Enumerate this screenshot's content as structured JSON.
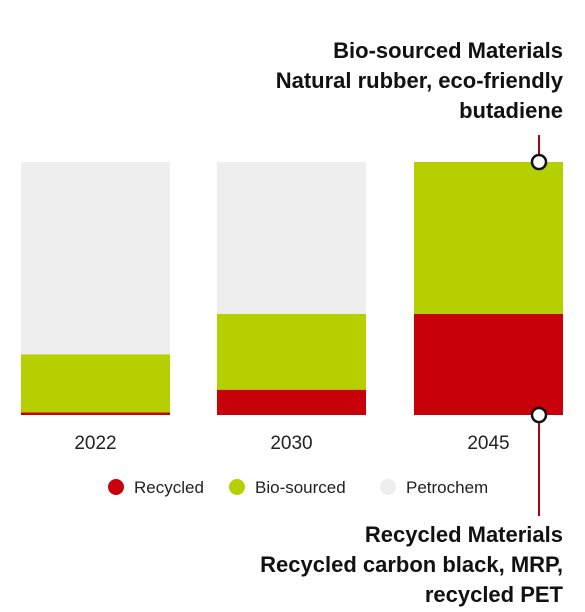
{
  "chart_data": {
    "type": "bar",
    "stacked": true,
    "categories": [
      "2022",
      "2030",
      "2045"
    ],
    "series": [
      {
        "name": "Recycled",
        "color": "#c8000a",
        "values": [
          1,
          10,
          40
        ]
      },
      {
        "name": "Bio-sourced",
        "color": "#b5cf00",
        "values": [
          23,
          30,
          60
        ]
      },
      {
        "name": "Petrochem",
        "color": "#eeeeee",
        "values": [
          76,
          60,
          0
        ]
      }
    ],
    "ylim": [
      0,
      100
    ],
    "grid": false,
    "legend_position": "bottom",
    "annotations": {
      "bio": {
        "lines": [
          "Bio-sourced Materials",
          "Natural rubber, eco-friendly",
          "butadiene"
        ]
      },
      "recycled": {
        "lines": [
          "Recycled Materials",
          "Recycled carbon black, MRP,",
          "recycled PET"
        ]
      }
    },
    "annotation_line_color": "#b00010"
  }
}
